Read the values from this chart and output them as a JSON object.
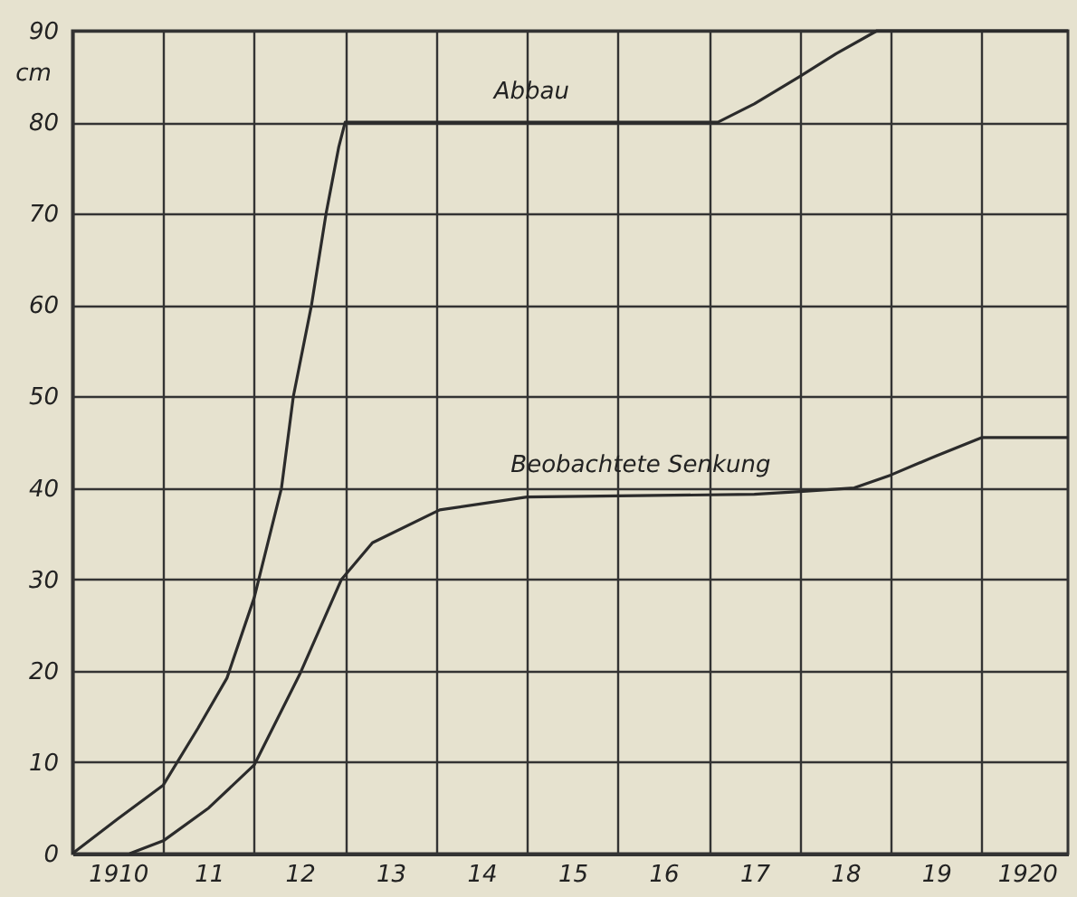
{
  "chart_data": {
    "type": "line",
    "ylabel": "cm",
    "xlim": [
      1909.5,
      1920.45
    ],
    "ylim": [
      0,
      90
    ],
    "xticks": [
      {
        "value": 1909.5,
        "label": null
      },
      1910,
      {
        "value": 1910.5,
        "label": null
      },
      {
        "value": 1911,
        "label": "11"
      },
      {
        "value": 1911.5,
        "label": null
      },
      {
        "value": 1912,
        "label": "12"
      },
      {
        "value": 1912.5,
        "label": null
      },
      {
        "value": 1913,
        "label": "13"
      },
      {
        "value": 1913.5,
        "label": null
      },
      {
        "value": 1914,
        "label": "14"
      },
      {
        "value": 1914.5,
        "label": null
      },
      {
        "value": 1915,
        "label": "15"
      },
      {
        "value": 1915.5,
        "label": null
      },
      {
        "value": 1916,
        "label": "16"
      },
      {
        "value": 1916.5,
        "label": null
      },
      {
        "value": 1917,
        "label": "17"
      },
      {
        "value": 1917.5,
        "label": null
      },
      {
        "value": 1918,
        "label": "18"
      },
      {
        "value": 1918.5,
        "label": null
      },
      {
        "value": 1919,
        "label": "19"
      },
      {
        "value": 1919.5,
        "label": null
      },
      1920
    ],
    "yticks": [
      0,
      10,
      20,
      30,
      40,
      50,
      60,
      70,
      80,
      90
    ],
    "grid": true,
    "marker": "none",
    "line_style": "solid",
    "series": [
      {
        "name": "Abbau",
        "color": "#2b2b2b",
        "x": [
          1909.5,
          1910,
          1910.5,
          1910.88,
          1911.2,
          1911.5,
          1911.8,
          1911.93,
          1912.13,
          1912.29,
          1912.43,
          1912.5,
          1916.6,
          1917,
          1917.5,
          1917.9,
          1918.35,
          1920.45
        ],
        "values": [
          0,
          3.8,
          7.5,
          13.7,
          19.2,
          28,
          40,
          50,
          60,
          70,
          77.3,
          80,
          80,
          82,
          85,
          87.5,
          90,
          90
        ]
      },
      {
        "name": "Beobachtete Senkung",
        "color": "#2b2b2b",
        "x": [
          1910.13,
          1910.5,
          1911,
          1911.5,
          1912,
          1912.46,
          1912.8,
          1913.54,
          1914.5,
          1917,
          1917.5,
          1918.1,
          1918.5,
          1919,
          1919.5,
          1920.45
        ],
        "values": [
          0,
          1.4,
          5,
          9.7,
          19.6,
          30,
          34,
          37.6,
          39,
          39.3,
          39.6,
          40,
          41.4,
          43.5,
          45.5,
          45.5
        ]
      }
    ]
  }
}
